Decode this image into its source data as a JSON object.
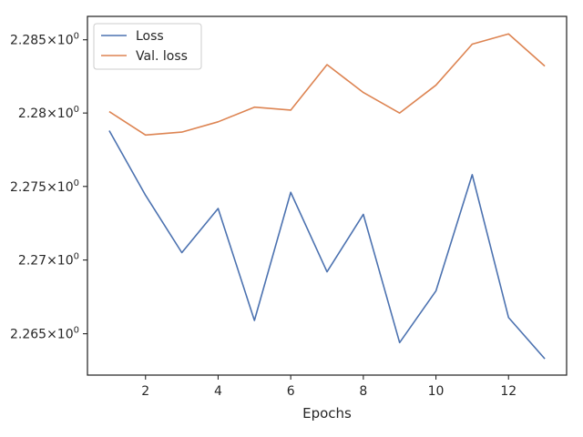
{
  "chart_data": {
    "type": "line",
    "title": "",
    "xlabel": "Epochs",
    "ylabel": "",
    "x": [
      1,
      2,
      3,
      4,
      5,
      6,
      7,
      8,
      9,
      10,
      11,
      12,
      13
    ],
    "xlim": [
      0.4,
      13.6
    ],
    "ylim": [
      2.2622,
      2.2866
    ],
    "xticks": [
      2,
      4,
      6,
      8,
      10,
      12
    ],
    "yticks": [
      {
        "value": 2.265,
        "base": "2.265",
        "sep": "×10",
        "exp": "0"
      },
      {
        "value": 2.27,
        "base": "2.27",
        "sep": "×10",
        "exp": "0"
      },
      {
        "value": 2.275,
        "base": "2.275",
        "sep": "×10",
        "exp": "0"
      },
      {
        "value": 2.28,
        "base": "2.28",
        "sep": "×10",
        "exp": "0"
      },
      {
        "value": 2.285,
        "base": "2.285",
        "sep": "×10",
        "exp": "0"
      }
    ],
    "yscale": "log",
    "grid": false,
    "legend_position": "top-left",
    "series": [
      {
        "name": "Loss",
        "color": "#4c72b0",
        "values": [
          2.2788,
          2.2744,
          2.2705,
          2.2735,
          2.2659,
          2.2746,
          2.2692,
          2.2731,
          2.2644,
          2.2679,
          2.2758,
          2.2661,
          2.2633
        ]
      },
      {
        "name": "Val. loss",
        "color": "#dd8452",
        "values": [
          2.2801,
          2.2785,
          2.2787,
          2.2794,
          2.2804,
          2.2802,
          2.2833,
          2.2814,
          2.28,
          2.2819,
          2.2847,
          2.2854,
          2.2832
        ]
      }
    ]
  }
}
